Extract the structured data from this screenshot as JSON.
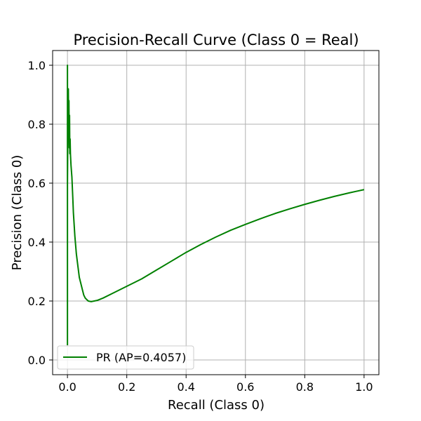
{
  "chart_data": {
    "type": "line",
    "title": "Precision-Recall Curve (Class 0 = Real)",
    "xlabel": "Recall (Class 0)",
    "ylabel": "Precision (Class 0)",
    "xlim": [
      -0.05,
      1.05
    ],
    "ylim": [
      -0.05,
      1.05
    ],
    "xticks": [
      "0.0",
      "0.2",
      "0.4",
      "0.6",
      "0.8",
      "1.0"
    ],
    "yticks": [
      "0.0",
      "0.2",
      "0.4",
      "0.6",
      "0.8",
      "1.0"
    ],
    "grid": true,
    "legend_position": "lower-left",
    "series": [
      {
        "name": "PR (AP=0.4057)",
        "color": "#008000",
        "x": [
          0.0,
          0.0,
          0.0,
          0.002,
          0.003,
          0.004,
          0.005,
          0.006,
          0.007,
          0.008,
          0.009,
          0.01,
          0.012,
          0.015,
          0.018,
          0.02,
          0.025,
          0.03,
          0.035,
          0.04,
          0.045,
          0.05,
          0.055,
          0.06,
          0.065,
          0.07,
          0.08,
          0.09,
          0.1,
          0.12,
          0.15,
          0.2,
          0.25,
          0.3,
          0.35,
          0.4,
          0.45,
          0.5,
          0.55,
          0.6,
          0.65,
          0.7,
          0.75,
          0.8,
          0.85,
          0.9,
          0.95,
          1.0
        ],
        "y": [
          0.05,
          1.0,
          0.6,
          0.85,
          0.92,
          0.78,
          0.88,
          0.72,
          0.83,
          0.7,
          0.75,
          0.7,
          0.66,
          0.62,
          0.55,
          0.5,
          0.42,
          0.36,
          0.32,
          0.28,
          0.26,
          0.24,
          0.22,
          0.21,
          0.205,
          0.2,
          0.198,
          0.2,
          0.202,
          0.21,
          0.225,
          0.25,
          0.275,
          0.305,
          0.335,
          0.365,
          0.392,
          0.417,
          0.44,
          0.46,
          0.479,
          0.497,
          0.513,
          0.528,
          0.542,
          0.555,
          0.567,
          0.578
        ]
      }
    ]
  }
}
